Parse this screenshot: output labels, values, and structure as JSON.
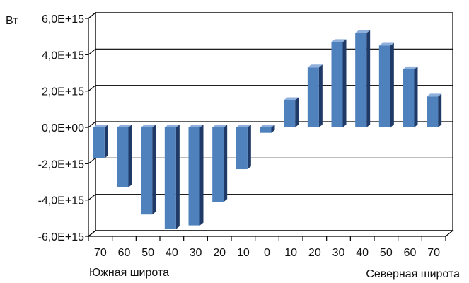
{
  "chart_data": {
    "type": "bar",
    "ylabel": "Вт",
    "ylim": [
      -6000000000000000.0,
      6000000000000000.0
    ],
    "yticks": [
      {
        "value": 6000000000000000.0,
        "label": "6,0E+15"
      },
      {
        "value": 4000000000000000.0,
        "label": "4,0E+15"
      },
      {
        "value": 2000000000000000.0,
        "label": "2,0E+15"
      },
      {
        "value": 0,
        "label": "0,0E+00"
      },
      {
        "value": -2000000000000000.0,
        "label": "-2,0E+15"
      },
      {
        "value": -4000000000000000.0,
        "label": "-4,0E+15"
      },
      {
        "value": -6000000000000000.0,
        "label": "-6,0E+15"
      }
    ],
    "categories": [
      "70",
      "60",
      "50",
      "40",
      "30",
      "20",
      "10",
      "0",
      "10",
      "20",
      "30",
      "40",
      "50",
      "60",
      "70"
    ],
    "values": [
      -1700000000000000.0,
      -3300000000000000.0,
      -4800000000000000.0,
      -5600000000000000.0,
      -5400000000000000.0,
      -4100000000000000.0,
      -2300000000000000.0,
      -300000000000000.0,
      1500000000000000.0,
      3300000000000000.0,
      4700000000000000.0,
      5200000000000000.0,
      4500000000000000.0,
      3200000000000000.0,
      1700000000000000.0
    ],
    "grid": true,
    "bar_color": "#4f81bd",
    "bar_side_color": "#1f3a66",
    "bar_top_color": "#8fb0dc",
    "xlabel_left": "Южная широта",
    "xlabel_right": "Северная широта"
  }
}
